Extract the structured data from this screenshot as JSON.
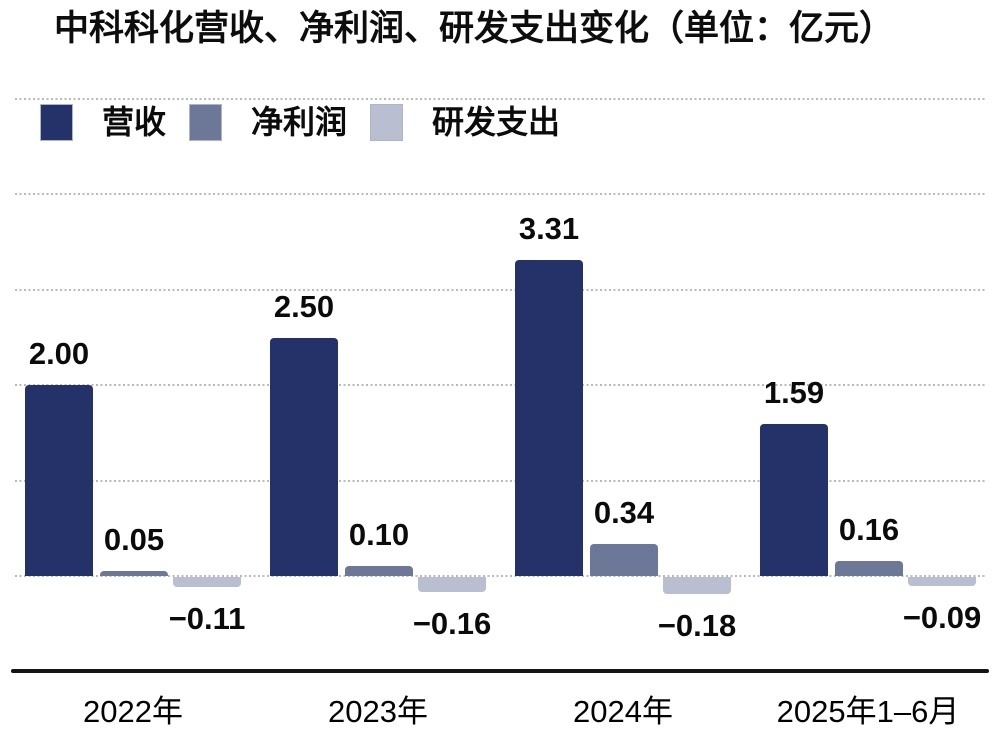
{
  "title": "中科科化营收、净利润、研发支出变化（单位：亿元）",
  "colors": {
    "revenue": "#243269",
    "net_profit": "#6d7899",
    "rd_spending": "#b9bed1",
    "gridline": "#b9b9b9",
    "axis_line": "#141414",
    "text": "#0b0b0b"
  },
  "chart_data": {
    "type": "bar",
    "title": "中科科化营收、净利润、研发支出变化（单位：亿元）",
    "unit": "亿元",
    "categories": [
      "2022年",
      "2023年",
      "2024年",
      "2025年1–6月"
    ],
    "series": [
      {
        "key": "revenue",
        "name": "营收",
        "color": "#243269",
        "values": [
          2.0,
          2.5,
          3.31,
          1.59
        ],
        "labels": [
          "2.00",
          "2.50",
          "3.31",
          "1.59"
        ]
      },
      {
        "key": "net-profit",
        "name": "净利润",
        "color": "#6d7899",
        "values": [
          0.05,
          0.1,
          0.34,
          0.16
        ],
        "labels": [
          "0.05",
          "0.10",
          "0.34",
          "0.16"
        ]
      },
      {
        "key": "rd-spending",
        "name": "研发支出",
        "color": "#b9bed1",
        "values": [
          -0.11,
          -0.16,
          -0.18,
          -0.09
        ],
        "labels": [
          "−0.11",
          "−0.16",
          "−0.18",
          "−0.09"
        ]
      }
    ],
    "ylim": [
      -1,
      5
    ],
    "gridline_values": [
      0,
      1,
      2,
      3,
      4,
      5
    ],
    "grid_style": "dotted",
    "legend_position": "top-left",
    "xlabel": "",
    "ylabel": ""
  }
}
